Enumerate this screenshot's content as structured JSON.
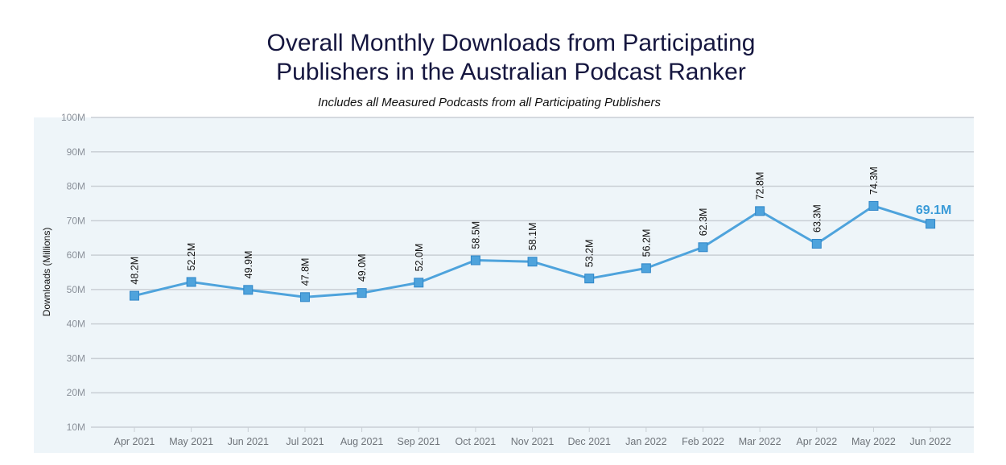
{
  "chart_data": {
    "type": "line",
    "title": "Overall Monthly Downloads from Participating Publishers in the Australian Podcast Ranker",
    "title_lines": [
      "Overall Monthly Downloads from Participating",
      "Publishers in the Australian Podcast Ranker"
    ],
    "subtitle": "Includes all Measured Podcasts from all Participating Publishers",
    "xlabel": "",
    "ylabel": "Downloads (Millions)",
    "ylim": [
      10,
      100
    ],
    "y_ticks": [
      10,
      20,
      30,
      40,
      50,
      60,
      70,
      80,
      90,
      100
    ],
    "y_tick_labels": [
      "10M",
      "20M",
      "30M",
      "40M",
      "50M",
      "60M",
      "70M",
      "80M",
      "90M",
      "100M"
    ],
    "categories": [
      "Apr 2021",
      "May 2021",
      "Jun 2021",
      "Jul 2021",
      "Aug 2021",
      "Sep 2021",
      "Oct 2021",
      "Nov 2021",
      "Dec 2021",
      "Jan 2022",
      "Feb 2022",
      "Mar 2022",
      "Apr 2022",
      "May 2022",
      "Jun 2022"
    ],
    "values": [
      48.2,
      52.2,
      49.9,
      47.8,
      49.0,
      52.0,
      58.5,
      58.1,
      53.2,
      56.2,
      62.3,
      72.8,
      63.3,
      74.3,
      69.1
    ],
    "data_labels": [
      "48.2M",
      "52.2M",
      "49.9M",
      "47.8M",
      "49.0M",
      "52.0M",
      "58.5M",
      "58.1M",
      "53.2M",
      "56.2M",
      "62.3M",
      "72.8M",
      "63.3M",
      "74.3M",
      "69.1M"
    ],
    "grid": true,
    "legend": "none",
    "colors": {
      "line": "#4ea3dc",
      "marker": "#4ea3dc",
      "marker_stroke": "#2f86c8",
      "highlight_label": "#3a9bd8",
      "plot_background": "#eef5f9",
      "gridline": "#c9cfd5",
      "tick_label": "#8a9099",
      "title": "#15163f"
    }
  }
}
